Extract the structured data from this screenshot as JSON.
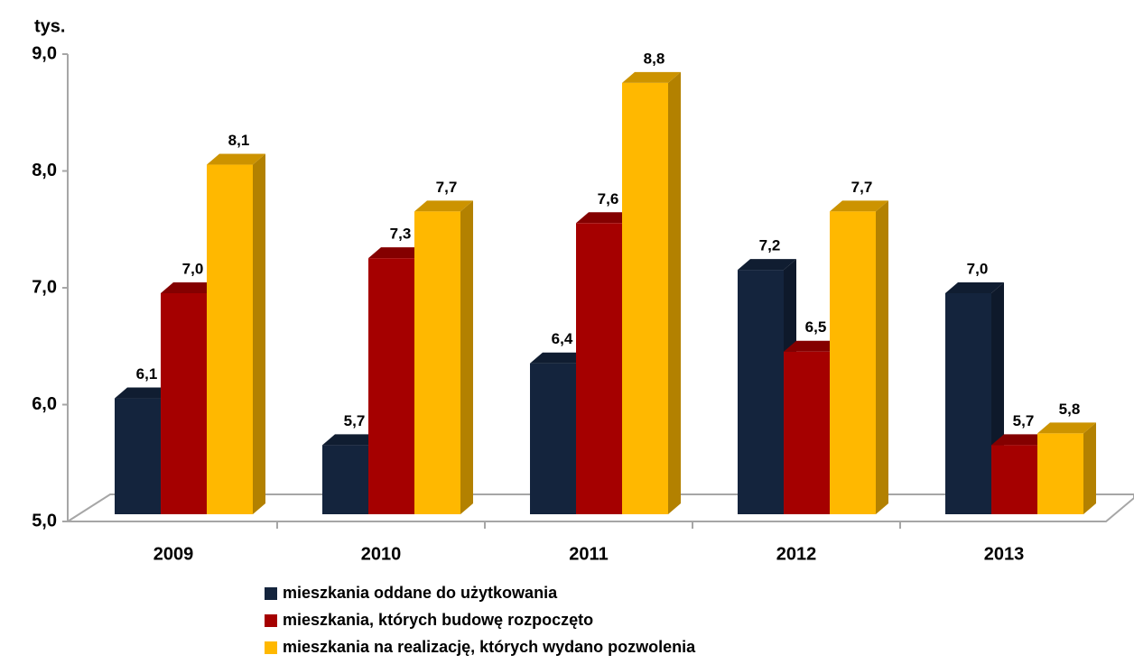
{
  "chart_data": {
    "type": "bar3d",
    "unit_label": "tys.",
    "categories": [
      "2009",
      "2010",
      "2011",
      "2012",
      "2013"
    ],
    "series": [
      {
        "name": "mieszkania oddane do użytkowania",
        "color": "#14243d",
        "values": [
          6.1,
          5.7,
          6.4,
          7.2,
          7.0
        ],
        "value_labels": [
          "6,1",
          "5,7",
          "6,4",
          "7,2",
          "7,0"
        ]
      },
      {
        "name": "mieszkania, których budowę rozpoczęto",
        "color": "#a50000",
        "values": [
          7.0,
          7.3,
          7.6,
          6.5,
          5.7
        ],
        "value_labels": [
          "7,0",
          "7,3",
          "7,6",
          "6,5",
          "5,7"
        ]
      },
      {
        "name": "mieszkania na realizację, których wydano pozwolenia",
        "color": "#ffb800",
        "values": [
          8.1,
          7.7,
          8.8,
          7.7,
          5.8
        ],
        "value_labels": [
          "8,1",
          "7,7",
          "8,8",
          "7,7",
          "5,8"
        ]
      }
    ],
    "ylim": [
      5,
      9
    ],
    "yticks": [
      {
        "value": 5,
        "label": "5,0"
      },
      {
        "value": 6,
        "label": "6,0"
      },
      {
        "value": 7,
        "label": "7,0"
      },
      {
        "value": 8,
        "label": "8,0"
      },
      {
        "value": 9,
        "label": "9,0"
      }
    ],
    "grid": false,
    "legend": "bottom"
  }
}
